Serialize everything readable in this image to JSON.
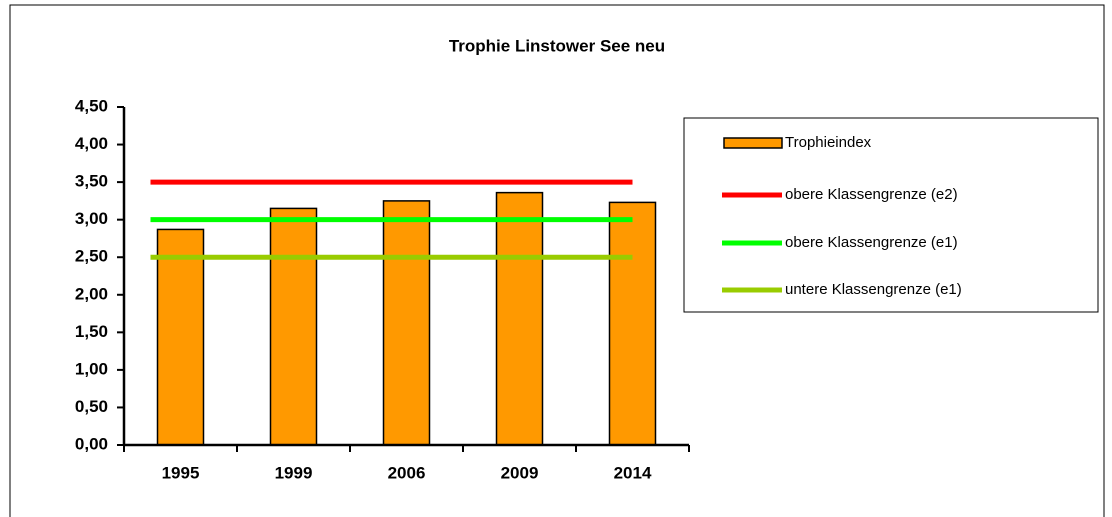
{
  "chart_data": {
    "type": "bar",
    "title": "Trophie Linstower See neu",
    "categories": [
      "1995",
      "1999",
      "2006",
      "2009",
      "2014"
    ],
    "series": [
      {
        "name": "Trophieindex",
        "type": "bar",
        "color": "#ff9900",
        "values": [
          2.87,
          3.15,
          3.25,
          3.36,
          3.23
        ]
      },
      {
        "name": "obere Klassengrenze (e2)",
        "type": "line",
        "color": "#ff0000",
        "values": [
          3.5,
          3.5,
          3.5,
          3.5,
          3.5
        ]
      },
      {
        "name": "obere Klassengrenze (e1)",
        "type": "line",
        "color": "#00ff00",
        "values": [
          3.0,
          3.0,
          3.0,
          3.0,
          3.0
        ]
      },
      {
        "name": "untere Klassengrenze (e1)",
        "type": "line",
        "color": "#99cc00",
        "values": [
          2.5,
          2.5,
          2.5,
          2.5,
          2.5
        ]
      }
    ],
    "ylim": [
      0,
      4.5
    ],
    "yticks": [
      {
        "value": 0,
        "label": "0,00"
      },
      {
        "value": 0.5,
        "label": "0,50"
      },
      {
        "value": 1,
        "label": "1,00"
      },
      {
        "value": 1.5,
        "label": "1,50"
      },
      {
        "value": 2,
        "label": "2,00"
      },
      {
        "value": 2.5,
        "label": "2,50"
      },
      {
        "value": 3,
        "label": "3,00"
      },
      {
        "value": 3.5,
        "label": "3,50"
      },
      {
        "value": 4,
        "label": "4,00"
      },
      {
        "value": 4.5,
        "label": "4,50"
      }
    ],
    "grid": false,
    "legend": "right"
  }
}
